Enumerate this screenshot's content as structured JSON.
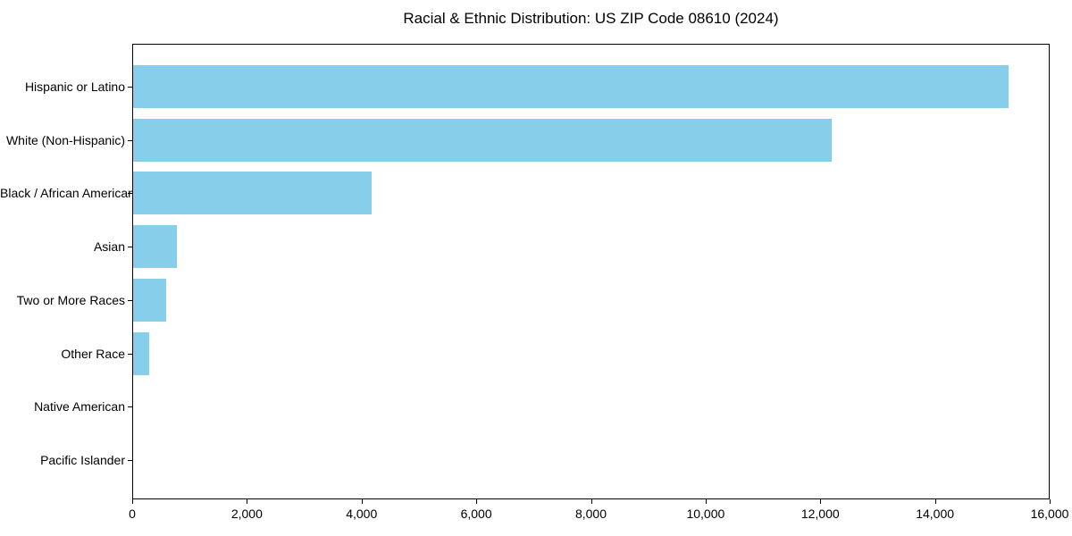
{
  "chart_data": {
    "type": "bar",
    "orientation": "horizontal",
    "title": "Racial & Ethnic Distribution: US ZIP Code 08610 (2024)",
    "categories": [
      "Hispanic or Latino",
      "White (Non-Hispanic)",
      "Black / African American",
      "Asian",
      "Two or More Races",
      "Other Race",
      "Native American",
      "Pacific Islander"
    ],
    "values": [
      15270,
      12180,
      4160,
      760,
      580,
      280,
      0,
      0
    ],
    "xlabel": "",
    "ylabel": "",
    "xlim": [
      0,
      16000
    ],
    "x_ticks": [
      0,
      2000,
      4000,
      6000,
      8000,
      10000,
      12000,
      14000,
      16000
    ],
    "x_tick_labels": [
      "0",
      "2,000",
      "4,000",
      "6,000",
      "8,000",
      "10,000",
      "12,000",
      "14,000",
      "16,000"
    ],
    "bar_color": "#87CEEB",
    "background_color": "#ffffff",
    "axis_color": "#000000",
    "grid": false,
    "legend": false
  }
}
